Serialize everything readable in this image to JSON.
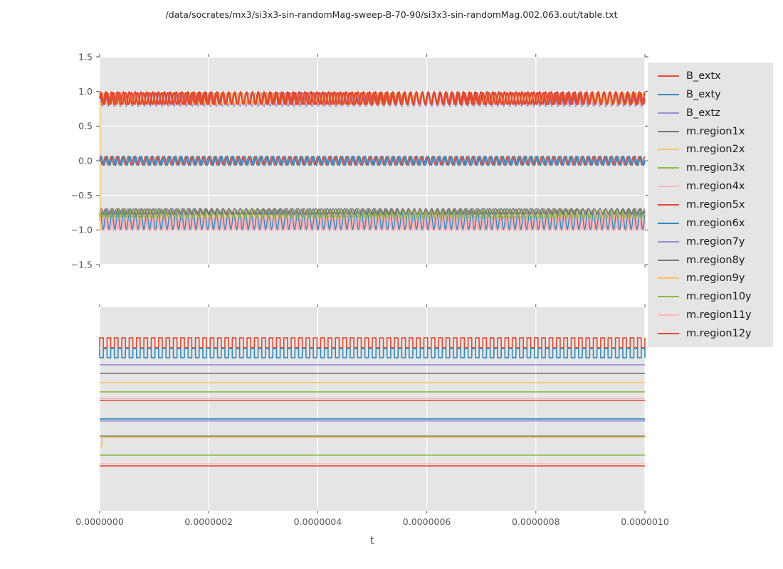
{
  "title": "/data/socrates/mx3/si3x3-sin-randomMag-sweep-B-70-90/si3x3-sin-randomMag.002.063.out/table.txt",
  "xlabel": "t",
  "colors": {
    "red": "#E24A33",
    "blue": "#348ABD",
    "purple": "#988ED5",
    "gray": "#777777",
    "orange": "#FBC15E",
    "green": "#8EBA42",
    "pink": "#FFB5B8",
    "plot_bg": "#E5E5E5",
    "grid": "#FFFFFF",
    "tick_text": "#555555",
    "legend_bg": "#E5E5E5",
    "legend_text": "#1a1a1a",
    "title_text": "#262626"
  },
  "legend": {
    "position": "right",
    "entries": [
      {
        "label": "B_extx",
        "color": "#E24A33"
      },
      {
        "label": "B_exty",
        "color": "#348ABD"
      },
      {
        "label": "B_extz",
        "color": "#988ED5"
      },
      {
        "label": "m.region1x",
        "color": "#777777"
      },
      {
        "label": "m.region2x",
        "color": "#FBC15E"
      },
      {
        "label": "m.region3x",
        "color": "#8EBA42"
      },
      {
        "label": "m.region4x",
        "color": "#FFB5B8"
      },
      {
        "label": "m.region5x",
        "color": "#E24A33"
      },
      {
        "label": "m.region6x",
        "color": "#348ABD"
      },
      {
        "label": "m.region7y",
        "color": "#988ED5"
      },
      {
        "label": "m.region8y",
        "color": "#777777"
      },
      {
        "label": "m.region9y",
        "color": "#FBC15E"
      },
      {
        "label": "m.region10y",
        "color": "#8EBA42"
      },
      {
        "label": "m.region11y",
        "color": "#FFB5B8"
      },
      {
        "label": "m.region12y",
        "color": "#E24A33"
      }
    ]
  },
  "chart_data": [
    {
      "type": "line",
      "title": "",
      "xlabel": "",
      "ylabel": "",
      "xlim": [
        0.0,
        1e-06
      ],
      "ylim": [
        -1.5,
        1.5
      ],
      "xticks": [
        0.0,
        2e-07,
        4e-07,
        6e-07,
        8e-07,
        1e-06
      ],
      "xtick_labels": [],
      "yticks": [
        1.5,
        1.0,
        0.5,
        0.0,
        -0.5,
        -1.0,
        -1.5
      ],
      "ytick_labels": [
        "1.5",
        "1.0",
        "0.5",
        "0.0",
        "−0.5",
        "−1.0",
        "−1.5"
      ],
      "grid": true,
      "note": "rapid oscillations in three bands: ~+0.9 (red/orange), ~0.0 (blue/red, purple flat), ~-0.87 (pink/blue/green/gray); orange transient from -1.0 at t=0",
      "series": [
        {
          "name": "m.region4x",
          "color": "#FFB5B8",
          "kind": "sine",
          "center": -0.87,
          "amp": 0.13,
          "cycles": 94,
          "phase": 0.0,
          "lw": 3.0
        },
        {
          "name": "m.region11y",
          "color": "#FFB5B8",
          "kind": "sine",
          "center": -0.87,
          "amp": 0.13,
          "cycles": 94,
          "phase": 2.1,
          "lw": 3.0
        },
        {
          "name": "m.region6x",
          "color": "#348ABD",
          "kind": "sine",
          "center": -0.87,
          "amp": 0.12,
          "cycles": 94,
          "phase": 0.8,
          "lw": 1.4
        },
        {
          "name": "m.region3x",
          "color": "#8EBA42",
          "kind": "sine",
          "center": -0.76,
          "amp": 0.05,
          "cycles": 92,
          "phase": 1.0,
          "lw": 1.4
        },
        {
          "name": "m.region10y",
          "color": "#8EBA42",
          "kind": "sine",
          "center": -0.78,
          "amp": 0.05,
          "cycles": 95,
          "phase": 2.5,
          "lw": 1.3
        },
        {
          "name": "m.region1x",
          "color": "#777777",
          "kind": "sine",
          "center": -0.73,
          "amp": 0.04,
          "cycles": 94,
          "phase": 0.0,
          "lw": 1.4
        },
        {
          "name": "m.region8y",
          "color": "#777777",
          "kind": "sine",
          "center": -0.735,
          "amp": 0.04,
          "cycles": 97,
          "phase": 1.5,
          "lw": 1.3
        },
        {
          "name": "m.region2x",
          "color": "#FBC15E",
          "kind": "sine",
          "center": 0.91,
          "amp": 0.07,
          "cycles": 90,
          "phase": 0.7,
          "lw": 1.5,
          "v0": -1.0,
          "t0": 0.001
        },
        {
          "name": "m.region7y",
          "color": "#988ED5",
          "kind": "sine",
          "center": 0.885,
          "amp": 0.1,
          "cycles": 91,
          "phase": 1.9,
          "lw": 1.3
        },
        {
          "name": "m.region9y",
          "color": "#FBC15E",
          "kind": "sine",
          "center": 0.9,
          "amp": 0.08,
          "cycles": 94,
          "phase": 3.5,
          "lw": 1.3
        },
        {
          "name": "B_extx",
          "color": "#E24A33",
          "kind": "sine",
          "center": 0.9,
          "amp": 0.085,
          "cycles": 90,
          "phase": 0.0,
          "lw": 2.2
        },
        {
          "name": "m.region5x",
          "color": "#E24A33",
          "kind": "sine",
          "center": 0.905,
          "amp": 0.09,
          "cycles": 93,
          "phase": 1.3,
          "lw": 2.2
        },
        {
          "name": "m.region12y",
          "color": "#E24A33",
          "kind": "sine",
          "center": 0.0,
          "amp": 0.06,
          "cycles": 95,
          "phase": 1.6,
          "lw": 1.8
        },
        {
          "name": "B_extz",
          "color": "#988ED5",
          "kind": "const",
          "center": 0.0,
          "lw": 1.5
        },
        {
          "name": "B_exty",
          "color": "#348ABD",
          "kind": "sine",
          "center": 0.0,
          "amp": 0.065,
          "cycles": 95,
          "phase": 0.0,
          "lw": 1.8
        }
      ]
    },
    {
      "type": "line",
      "title": "",
      "xlabel": "t",
      "ylabel": "",
      "xlim": [
        0.0,
        1e-06
      ],
      "ylim": [
        0,
        1
      ],
      "xticks": [
        0.0,
        2e-07,
        4e-07,
        6e-07,
        8e-07,
        1e-06
      ],
      "xtick_labels": [
        "0.0000000",
        "0.0000002",
        "0.0000004",
        "0.0000006",
        "0.0000008",
        "0.0000010"
      ],
      "yticks": [],
      "ytick_labels": [],
      "grid": true,
      "note": "y-axis unlabeled; centers given as fraction of plot height from bottom",
      "series": [
        {
          "name": "B_extx",
          "color": "#E24A33",
          "kind": "square",
          "center": 0.8255,
          "amp": 0.0245,
          "cycles": 74,
          "phase": 0.0,
          "lw": 1.6
        },
        {
          "name": "B_exty",
          "color": "#348ABD",
          "kind": "square",
          "center": 0.7745,
          "amp": 0.0225,
          "cycles": 74,
          "phase": 0.5,
          "lw": 1.6
        },
        {
          "name": "B_extz",
          "color": "#988ED5",
          "kind": "const",
          "center": 0.717,
          "lw": 1.6
        },
        {
          "name": "m.region1x",
          "color": "#777777",
          "kind": "const",
          "center": 0.675,
          "lw": 1.6
        },
        {
          "name": "m.region2x",
          "color": "#FBC15E",
          "kind": "const",
          "center": 0.629,
          "lw": 1.6
        },
        {
          "name": "m.region3x",
          "color": "#8EBA42",
          "kind": "const",
          "center": 0.584,
          "lw": 1.6
        },
        {
          "name": "m.region4x",
          "color": "#FFB5B8",
          "kind": "const",
          "center": 0.552,
          "lw": 1.6
        },
        {
          "name": "m.region5x",
          "color": "#E24A33",
          "kind": "const",
          "center": 0.542,
          "lw": 1.6
        },
        {
          "name": "m.region6x",
          "color": "#348ABD",
          "kind": "const",
          "center": 0.451,
          "lw": 1.8
        },
        {
          "name": "m.region7y",
          "color": "#988ED5",
          "kind": "const",
          "center": 0.441,
          "lw": 1.4
        },
        {
          "name": "m.region9y",
          "color": "#FBC15E",
          "kind": "const",
          "center": 0.36,
          "lw": 1.8,
          "v0": 0.315,
          "t0": 0.004
        },
        {
          "name": "m.region8y",
          "color": "#777777",
          "kind": "const",
          "center": 0.367,
          "lw": 1.4
        },
        {
          "name": "m.region10y",
          "color": "#8EBA42",
          "kind": "const",
          "center": 0.273,
          "lw": 1.6
        },
        {
          "name": "m.region11y",
          "color": "#FFB5B8",
          "kind": "const",
          "center": 0.231,
          "lw": 1.4
        },
        {
          "name": "m.region12y",
          "color": "#E24A33",
          "kind": "const",
          "center": 0.22,
          "lw": 1.6
        }
      ]
    }
  ]
}
